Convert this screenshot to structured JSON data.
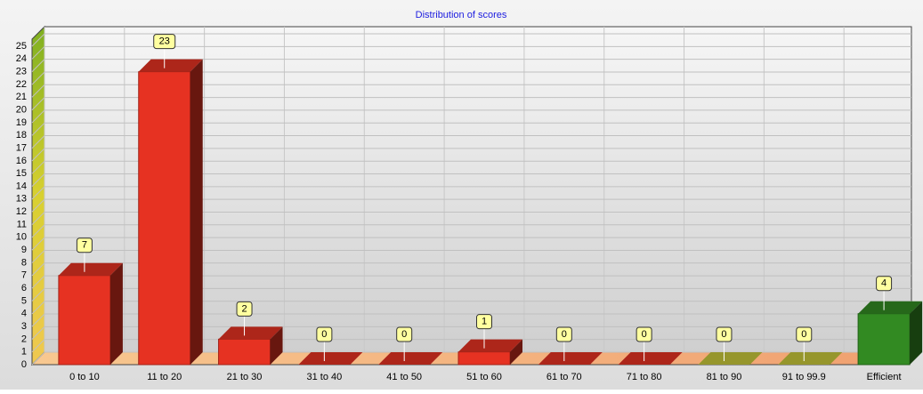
{
  "chart_data": {
    "type": "bar3d",
    "title": "Distribution of scores",
    "categories": [
      "0 to 10",
      "11 to 20",
      "21 to 30",
      "31 to 40",
      "41 to 50",
      "51 to 60",
      "61 to 70",
      "71 to 80",
      "81 to 90",
      "91 to 99.9",
      "Efficient"
    ],
    "values": [
      7,
      23,
      2,
      0,
      0,
      1,
      0,
      0,
      0,
      0,
      4
    ],
    "colors": [
      "#e63222",
      "#e63222",
      "#e63222",
      "#e63222",
      "#e63222",
      "#e63222",
      "#e63222",
      "#e63222",
      "#c8c83a",
      "#c8c83a",
      "#328a22"
    ],
    "ylim": [
      0,
      25
    ],
    "yticks": [
      0,
      1,
      2,
      3,
      4,
      5,
      6,
      7,
      8,
      9,
      10,
      11,
      12,
      13,
      14,
      15,
      16,
      17,
      18,
      19,
      20,
      21,
      22,
      23,
      24,
      25
    ],
    "grid": true
  }
}
